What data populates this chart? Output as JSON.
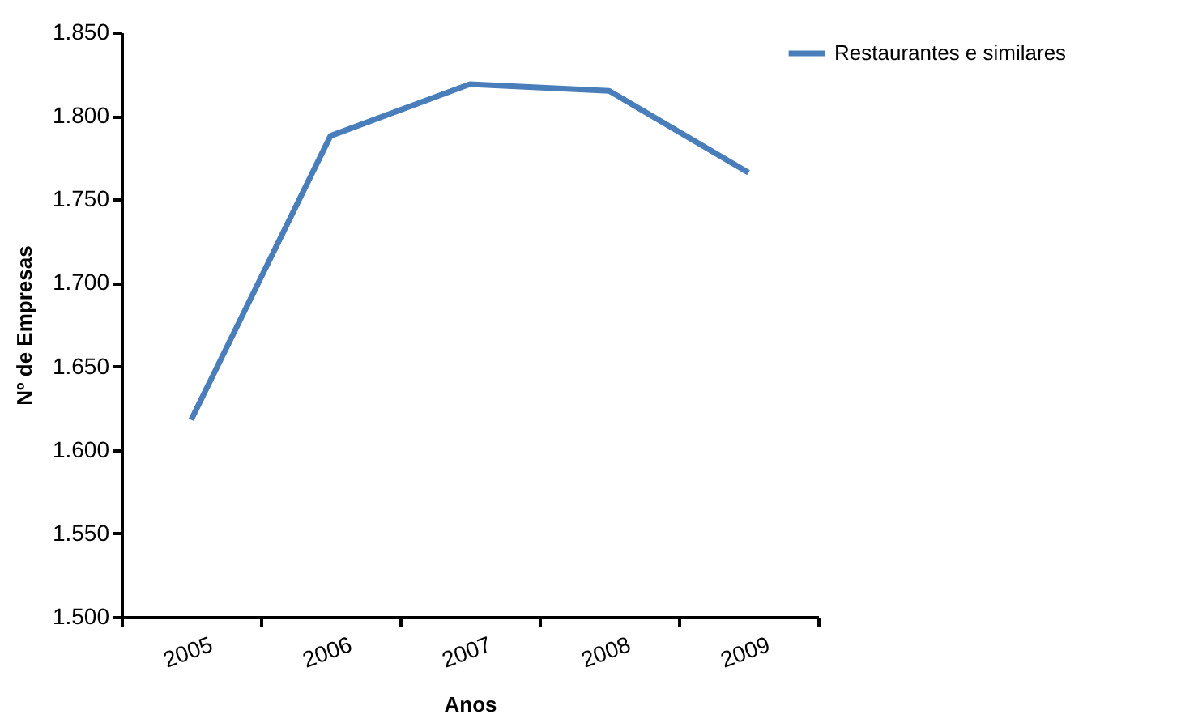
{
  "chart_data": {
    "type": "line",
    "xlabel": "Anos",
    "ylabel": "Nº de Empresas",
    "categories": [
      "2005",
      "2006",
      "2007",
      "2008",
      "2009"
    ],
    "series": [
      {
        "name": "Restaurantes e similares",
        "color": "#4a7ebb",
        "values": [
          1618,
          1788,
          1819,
          1815,
          1766
        ]
      }
    ],
    "ylim": [
      1500,
      1850
    ],
    "yticks": [
      {
        "value": 1500,
        "label": "1.500"
      },
      {
        "value": 1550,
        "label": "1.550"
      },
      {
        "value": 1600,
        "label": "1.600"
      },
      {
        "value": 1650,
        "label": "1.650"
      },
      {
        "value": 1700,
        "label": "1.700"
      },
      {
        "value": 1750,
        "label": "1.750"
      },
      {
        "value": 1800,
        "label": "1.800"
      },
      {
        "value": 1850,
        "label": "1.850"
      }
    ],
    "grid": false,
    "legend": "right",
    "marker": "none",
    "line_style": "solid"
  }
}
